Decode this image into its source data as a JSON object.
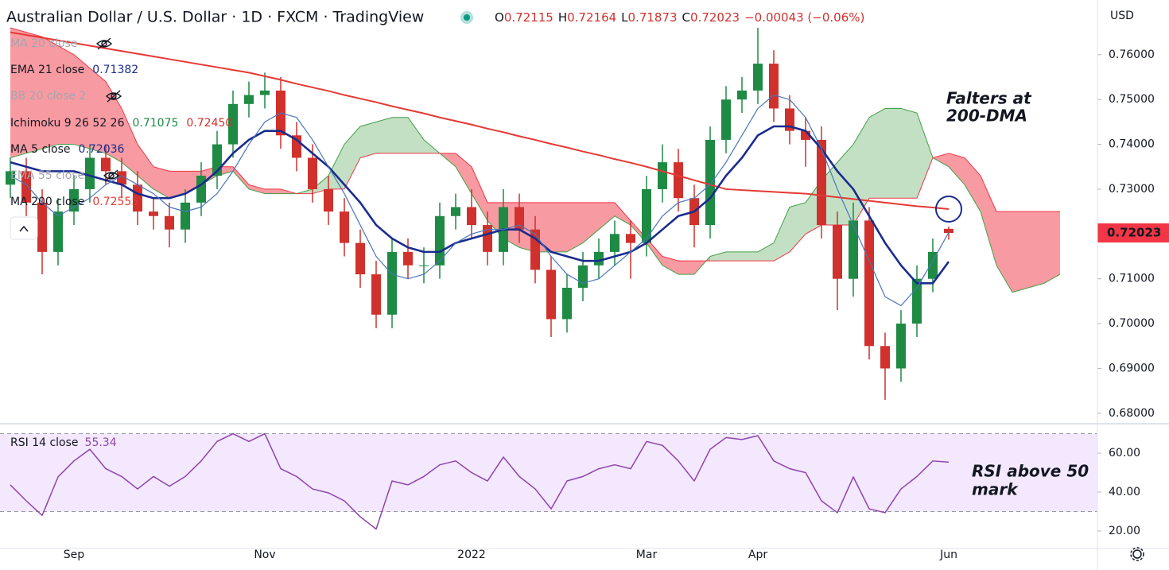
{
  "header": {
    "title": "Australian Dollar / U.S. Dollar · 1D · FXCM · TradingView",
    "ohlc_keys": [
      "O",
      "H",
      "L",
      "C"
    ],
    "change": "−0.00043 (−0.06%)",
    "currency": "USD"
  },
  "chart_data": [
    {
      "type": "candlestick",
      "up_color": "#1e8a44",
      "down_color": "#d0312d",
      "last_price_color": "#f23645",
      "categories": [
        null,
        null,
        null,
        null,
        "Sep",
        null,
        null,
        null,
        null,
        null,
        null,
        null,
        null,
        null,
        null,
        null,
        "Nov",
        null,
        null,
        null,
        null,
        null,
        null,
        null,
        null,
        null,
        null,
        null,
        null,
        "2022",
        null,
        null,
        null,
        null,
        null,
        null,
        null,
        null,
        null,
        null,
        "Mar",
        null,
        null,
        null,
        null,
        null,
        null,
        "Apr",
        null,
        null,
        null,
        null,
        null,
        null,
        null,
        null,
        null,
        null,
        null,
        "Jun",
        null,
        null,
        null,
        null,
        null,
        null,
        null
      ],
      "open": [
        0.731,
        0.734,
        0.727,
        0.716,
        0.725,
        0.73,
        0.737,
        0.734,
        0.731,
        0.725,
        0.724,
        0.721,
        0.727,
        0.733,
        0.74,
        0.749,
        0.751,
        0.752,
        0.742,
        0.737,
        0.73,
        0.725,
        0.718,
        0.711,
        0.702,
        0.716,
        0.713,
        0.713,
        0.724,
        0.726,
        0.722,
        0.716,
        0.726,
        0.721,
        0.712,
        0.701,
        0.708,
        0.713,
        0.716,
        0.72,
        0.718,
        0.73,
        0.736,
        0.728,
        0.722,
        0.741,
        0.75,
        0.752,
        0.758,
        0.748,
        0.743,
        0.741,
        0.722,
        0.71,
        0.723,
        0.695,
        0.69,
        0.7,
        0.71,
        0.72115,
        null,
        null,
        null,
        null,
        null,
        null,
        null
      ],
      "high": [
        0.737,
        0.737,
        0.73,
        0.728,
        0.733,
        0.74,
        0.74,
        0.737,
        0.734,
        0.728,
        0.727,
        0.73,
        0.736,
        0.743,
        0.752,
        0.754,
        0.756,
        0.755,
        0.745,
        0.74,
        0.733,
        0.728,
        0.721,
        0.714,
        0.719,
        0.719,
        0.717,
        0.727,
        0.729,
        0.73,
        0.725,
        0.73,
        0.729,
        0.724,
        0.715,
        0.711,
        0.716,
        0.719,
        0.723,
        0.723,
        0.733,
        0.74,
        0.739,
        0.731,
        0.744,
        0.753,
        0.755,
        0.766,
        0.761,
        0.751,
        0.746,
        0.744,
        0.725,
        0.727,
        0.726,
        0.698,
        0.703,
        0.713,
        0.719,
        0.72164,
        null,
        null,
        null,
        null,
        null,
        null,
        null
      ],
      "low": [
        0.728,
        0.724,
        0.711,
        0.713,
        0.722,
        0.727,
        0.731,
        0.728,
        0.722,
        0.721,
        0.717,
        0.718,
        0.724,
        0.73,
        0.737,
        0.746,
        0.748,
        0.739,
        0.734,
        0.727,
        0.722,
        0.715,
        0.708,
        0.699,
        0.699,
        0.71,
        0.709,
        0.71,
        0.721,
        0.719,
        0.713,
        0.713,
        0.718,
        0.709,
        0.697,
        0.698,
        0.705,
        0.71,
        0.713,
        0.71,
        0.715,
        0.727,
        0.725,
        0.717,
        0.719,
        0.738,
        0.747,
        0.749,
        0.745,
        0.74,
        0.735,
        0.719,
        0.703,
        0.706,
        0.692,
        0.683,
        0.687,
        0.697,
        0.707,
        0.71873,
        null,
        null,
        null,
        null,
        null,
        null,
        null
      ],
      "close": [
        0.734,
        0.727,
        0.716,
        0.725,
        0.73,
        0.737,
        0.734,
        0.731,
        0.725,
        0.724,
        0.721,
        0.727,
        0.733,
        0.74,
        0.749,
        0.751,
        0.752,
        0.742,
        0.737,
        0.73,
        0.725,
        0.718,
        0.711,
        0.702,
        0.716,
        0.713,
        0.713,
        0.724,
        0.726,
        0.722,
        0.716,
        0.726,
        0.721,
        0.712,
        0.701,
        0.708,
        0.713,
        0.716,
        0.72,
        0.718,
        0.73,
        0.736,
        0.728,
        0.722,
        0.741,
        0.75,
        0.752,
        0.758,
        0.748,
        0.743,
        0.741,
        0.722,
        0.71,
        0.723,
        0.695,
        0.69,
        0.7,
        0.71,
        0.716,
        0.72023,
        null,
        null,
        null,
        null,
        null,
        null,
        null
      ],
      "series": [
        {
          "name": "MA 200 close",
          "color": "#e53935",
          "values": [
            0.765,
            0.7644,
            0.7638,
            0.7632,
            0.7626,
            0.762,
            0.7614,
            0.7608,
            0.7602,
            0.7596,
            0.759,
            0.7584,
            0.7578,
            0.7572,
            0.7566,
            0.756,
            0.7552,
            0.7544,
            0.7535,
            0.7527,
            0.7519,
            0.751,
            0.7502,
            0.7494,
            0.7485,
            0.7477,
            0.7469,
            0.746,
            0.7452,
            0.7444,
            0.7435,
            0.7427,
            0.7418,
            0.741,
            0.7401,
            0.7393,
            0.7384,
            0.7376,
            0.7367,
            0.7359,
            0.735,
            0.734,
            0.733,
            0.732,
            0.731,
            0.73,
            0.7298,
            0.7296,
            0.7294,
            0.7292,
            0.729,
            0.7286,
            0.7282,
            0.7278,
            0.7274,
            0.727,
            0.7266,
            0.7262,
            0.7259,
            0.72555,
            null,
            null,
            null,
            null,
            null,
            null,
            null
          ]
        },
        {
          "name": "EMA 21 close",
          "color": "#1a2c8e",
          "values": [
            0.736,
            0.735,
            0.734,
            0.734,
            0.734,
            0.733,
            0.732,
            0.731,
            0.729,
            0.728,
            0.728,
            0.729,
            0.731,
            0.734,
            0.738,
            0.741,
            0.743,
            0.743,
            0.741,
            0.738,
            0.735,
            0.731,
            0.727,
            0.722,
            0.719,
            0.717,
            0.716,
            0.716,
            0.718,
            0.719,
            0.72,
            0.721,
            0.721,
            0.719,
            0.716,
            0.715,
            0.714,
            0.714,
            0.715,
            0.716,
            0.718,
            0.721,
            0.724,
            0.725,
            0.728,
            0.733,
            0.737,
            0.742,
            0.744,
            0.744,
            0.743,
            0.739,
            0.734,
            0.73,
            0.724,
            0.718,
            0.713,
            0.709,
            0.709,
            0.71382,
            null,
            null,
            null,
            null,
            null,
            null,
            null
          ]
        },
        {
          "name": "MA 5 close",
          "color": "#4a76b8",
          "values": [
            0.733,
            0.731,
            0.727,
            0.724,
            0.726,
            0.728,
            0.731,
            0.733,
            0.731,
            0.729,
            0.726,
            0.725,
            0.726,
            0.729,
            0.734,
            0.74,
            0.745,
            0.747,
            0.746,
            0.741,
            0.735,
            0.729,
            0.722,
            0.715,
            0.711,
            0.71,
            0.711,
            0.714,
            0.718,
            0.72,
            0.721,
            0.721,
            0.722,
            0.72,
            0.715,
            0.711,
            0.709,
            0.71,
            0.713,
            0.716,
            0.719,
            0.724,
            0.727,
            0.728,
            0.731,
            0.736,
            0.742,
            0.748,
            0.751,
            0.75,
            0.746,
            0.739,
            0.73,
            0.722,
            0.714,
            0.706,
            0.704,
            0.708,
            0.714,
            0.72036,
            null,
            null,
            null,
            null,
            null,
            null,
            null
          ]
        }
      ],
      "ichimoku": {
        "name": "Ichimoku 9 26 52 26",
        "legend_values": [
          "0.71075",
          "0.72450"
        ],
        "up_color": "#43a047",
        "down_color": "#f23645",
        "span_a": [
          0.737,
          0.738,
          0.739,
          0.74,
          0.74,
          0.739,
          0.738,
          0.736,
          0.733,
          0.73,
          0.728,
          0.729,
          0.731,
          0.733,
          0.734,
          0.73,
          0.729,
          0.729,
          0.729,
          0.73,
          0.733,
          0.74,
          0.744,
          0.745,
          0.746,
          0.746,
          0.741,
          0.738,
          0.735,
          0.729,
          0.723,
          0.719,
          0.717,
          0.716,
          0.716,
          0.716,
          0.718,
          0.721,
          0.724,
          0.722,
          0.718,
          0.713,
          0.711,
          0.711,
          0.715,
          0.716,
          0.716,
          0.716,
          0.718,
          0.726,
          0.727,
          0.732,
          0.736,
          0.74,
          0.746,
          0.748,
          0.748,
          0.747,
          0.737,
          0.735,
          0.731,
          0.725,
          0.713,
          0.707,
          0.708,
          0.709,
          0.711
        ],
        "span_b": [
          0.766,
          0.765,
          0.764,
          0.762,
          0.76,
          0.757,
          0.754,
          0.748,
          0.74,
          0.735,
          0.734,
          0.734,
          0.734,
          0.735,
          0.735,
          0.731,
          0.73,
          0.73,
          0.729,
          0.729,
          0.73,
          0.73,
          0.737,
          0.738,
          0.738,
          0.738,
          0.738,
          0.738,
          0.738,
          0.735,
          0.727,
          0.727,
          0.727,
          0.727,
          0.727,
          0.727,
          0.727,
          0.727,
          0.727,
          0.723,
          0.719,
          0.715,
          0.714,
          0.714,
          0.714,
          0.714,
          0.714,
          0.714,
          0.714,
          0.716,
          0.72,
          0.722,
          0.722,
          0.722,
          0.728,
          0.728,
          0.728,
          0.728,
          0.737,
          0.738,
          0.737,
          0.733,
          0.725,
          0.725,
          0.725,
          0.725,
          0.725
        ]
      },
      "hidden_indicators": [
        "MA 20 close",
        "BB 20 close 2",
        "EMA 55 close"
      ],
      "annotations": [
        {
          "lines": [
            "Falters at",
            "200-DMA"
          ]
        }
      ],
      "ylim": [
        0.6782,
        0.7722
      ],
      "yticks": [
        {
          "value": 0.68,
          "label": "0.68000"
        },
        {
          "value": 0.69,
          "label": "0.69000"
        },
        {
          "value": 0.7,
          "label": "0.70000"
        },
        {
          "value": 0.71,
          "label": "0.71000"
        },
        {
          "value": 0.72,
          "label": "0.72000"
        },
        {
          "value": 0.73,
          "label": "0.73000"
        },
        {
          "value": 0.74,
          "label": "0.74000"
        },
        {
          "value": 0.75,
          "label": "0.75000"
        },
        {
          "value": 0.76,
          "label": "0.76000"
        }
      ],
      "grid": false
    },
    {
      "type": "line",
      "name": "RSI 14 close",
      "color": "#8e44ad",
      "band": [
        30,
        70
      ],
      "band_color": "#f3e8fd",
      "values": [
        43.7,
        35.5,
        28,
        47.8,
        56,
        62,
        52,
        48,
        41.6,
        48,
        43,
        48,
        56,
        66,
        70,
        66,
        70,
        52,
        48,
        41.6,
        39.6,
        35.5,
        27.3,
        21,
        45.7,
        43.7,
        48,
        54,
        56,
        50,
        45.7,
        58,
        48,
        41.6,
        31.4,
        45.7,
        48,
        52,
        54,
        52,
        66,
        64,
        56,
        45.7,
        62,
        68,
        67,
        69,
        56,
        52,
        50,
        35.5,
        29.4,
        47.8,
        31.4,
        29.4,
        41.6,
        48,
        56,
        55.34,
        null,
        null,
        null,
        null,
        null,
        null,
        null
      ],
      "annotations": [
        {
          "lines": [
            "RSI above 50",
            "mark"
          ]
        }
      ],
      "ylim": [
        11,
        74.3
      ],
      "yticks": [
        {
          "value": 20,
          "label": "20.00"
        },
        {
          "value": 40,
          "label": "40.00"
        },
        {
          "value": 60,
          "label": "60.00"
        }
      ],
      "grid": false
    }
  ]
}
